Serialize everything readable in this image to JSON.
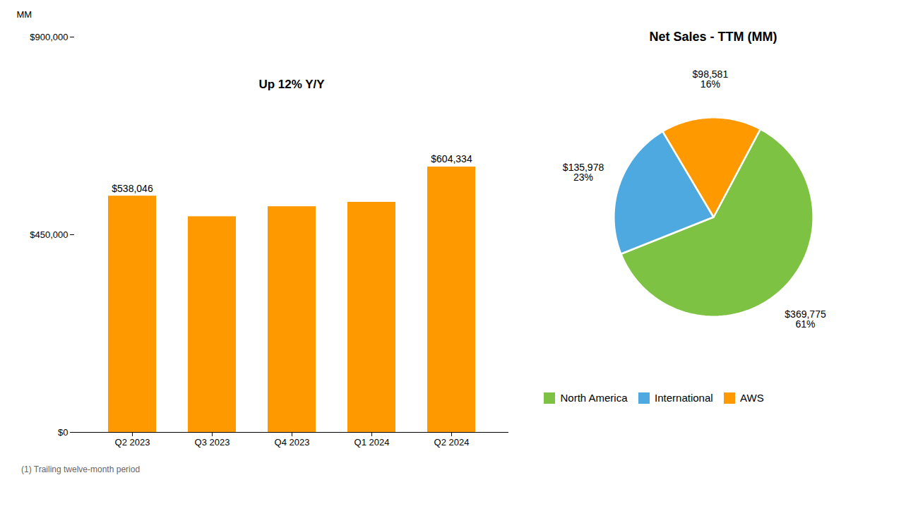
{
  "chart_data": [
    {
      "type": "bar",
      "categories": [
        "Q2 2023",
        "Q3 2023",
        "Q4 2023",
        "Q1 2024",
        "Q2 2024"
      ],
      "values": [
        538046,
        491149,
        514000,
        524000,
        604334
      ],
      "value_labels": [
        "$538,046",
        null,
        null,
        null,
        "$604,334"
      ],
      "data_labels": true,
      "color": "#ff9900",
      "ylabel": "MM",
      "ylim": [
        0,
        900000
      ],
      "yticks": [
        {
          "value": 0,
          "label": "$0"
        },
        {
          "value": 450000,
          "label": "$450,000"
        },
        {
          "value": 900000,
          "label": "$900,000"
        }
      ],
      "grid": false,
      "annotation": "Up 12% Y/Y"
    },
    {
      "type": "pie",
      "title": "Net Sales - TTM (MM)",
      "categories": [
        "North America",
        "International",
        "AWS"
      ],
      "values": [
        369775,
        135978,
        98581
      ],
      "value_labels": [
        "$369,775",
        "$135,978",
        "$98,581"
      ],
      "shares": [
        61,
        23,
        16
      ],
      "share_labels": [
        "61%",
        "23%",
        "16%"
      ],
      "colors": [
        "#7dc242",
        "#4da9e0",
        "#ff9900"
      ],
      "legend": "bottom"
    }
  ],
  "footnote": "(1)    Trailing twelve-month period"
}
